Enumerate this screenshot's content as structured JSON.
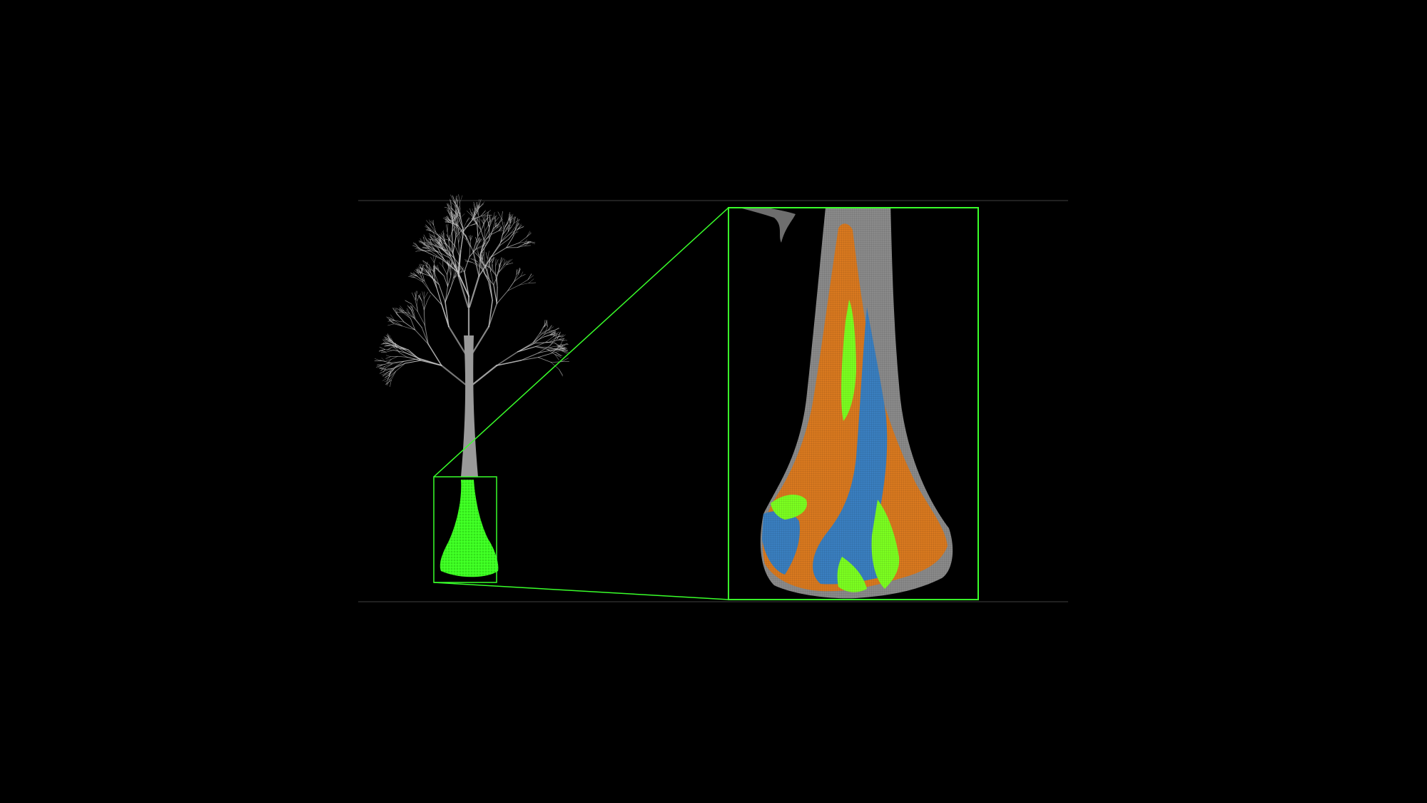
{
  "view": {
    "background_color": "#000000",
    "frame_line_color": "#2a2a2a",
    "highlight_color": "#39ff2a"
  },
  "full_tree": {
    "point_color": "#c8c8c8",
    "trunk_color": "#9a9a9a",
    "base_highlight_color": "#3cff20"
  },
  "trunk_detail": {
    "outline_color": "#8a8a8a",
    "segment_colors": {
      "orange": "#d9791f",
      "blue": "#3a7fc0",
      "green": "#7cff20",
      "gray": "#6e6e6e"
    }
  },
  "zoom_indicator": {
    "icon": "zoom-connector-lines"
  }
}
